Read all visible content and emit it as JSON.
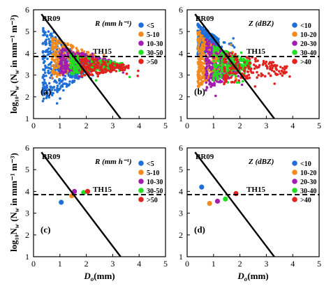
{
  "chart_data": [
    {
      "panel": "(a)",
      "type": "scatter",
      "xlim": [
        0,
        5
      ],
      "ylim": [
        1,
        6
      ],
      "xticks": [
        0,
        1,
        2,
        3,
        4,
        5
      ],
      "yticks": [
        1,
        2,
        3,
        4,
        5,
        6
      ],
      "show_x_title": false,
      "show_y_title": true,
      "legend": {
        "title": "R (mm h⁻¹)",
        "position": "top-right"
      },
      "line_labels": {
        "br09": "BR09",
        "th15": "TH15"
      },
      "series": [
        {
          "name": "<5",
          "color": "#1f6fd6",
          "cloud": {
            "x": [
              0.35,
              2.0
            ],
            "y": [
              1.7,
              5.4
            ]
          }
        },
        {
          "name": "5-10",
          "color": "#f28a1e",
          "cloud": {
            "x": [
              0.7,
              2.4
            ],
            "y": [
              2.8,
              4.8
            ]
          }
        },
        {
          "name": "10-30",
          "color": "#a21caf",
          "cloud": {
            "x": [
              1.0,
              3.0
            ],
            "y": [
              2.9,
              4.3
            ]
          }
        },
        {
          "name": "30-50",
          "color": "#22dd22",
          "cloud": {
            "x": [
              1.4,
              3.4
            ],
            "y": [
              3.0,
              4.0
            ]
          }
        },
        {
          "name": ">50",
          "color": "#e0231f",
          "cloud": {
            "x": [
              1.8,
              3.6
            ],
            "y": [
              2.9,
              3.9
            ]
          }
        }
      ]
    },
    {
      "panel": "(b)",
      "type": "scatter",
      "xlim": [
        0,
        5
      ],
      "ylim": [
        1,
        6
      ],
      "xticks": [
        0,
        1,
        2,
        3,
        4,
        5
      ],
      "yticks": [
        1,
        2,
        3,
        4,
        5,
        6
      ],
      "show_x_title": false,
      "show_y_title": false,
      "legend": {
        "title": "Z (dBZ)",
        "position": "top-right"
      },
      "line_labels": {
        "br09": "BR09",
        "th15": "TH15"
      },
      "series": [
        {
          "name": "<10",
          "color": "#1f6fd6",
          "cloud": {
            "x": [
              0.4,
              1.2
            ],
            "y": [
              3.8,
              5.4
            ]
          }
        },
        {
          "name": "10-20",
          "color": "#f28a1e",
          "cloud": {
            "x": [
              0.4,
              1.4
            ],
            "y": [
              2.3,
              5.2
            ]
          }
        },
        {
          "name": "20-30",
          "color": "#a21caf",
          "cloud": {
            "x": [
              0.7,
              2.0
            ],
            "y": [
              2.2,
              4.8
            ]
          }
        },
        {
          "name": "30-40",
          "color": "#22dd22",
          "cloud": {
            "x": [
              1.0,
              2.4
            ],
            "y": [
              2.7,
              4.4
            ]
          }
        },
        {
          "name": ">40",
          "color": "#e0231f",
          "cloud": {
            "x": [
              1.4,
              3.8
            ],
            "y": [
              2.5,
              4.2
            ]
          }
        }
      ]
    },
    {
      "panel": "(c)",
      "type": "scatter",
      "xlim": [
        0,
        5
      ],
      "ylim": [
        1,
        6
      ],
      "xticks": [
        0,
        1,
        2,
        3,
        4,
        5
      ],
      "yticks": [
        1,
        2,
        3,
        4,
        5,
        6
      ],
      "show_x_title": true,
      "show_y_title": true,
      "legend": {
        "title": "R (mm h⁻¹)",
        "position": "top-right"
      },
      "line_labels": {
        "br09": "BR09",
        "th15": "TH15"
      },
      "series": [
        {
          "name": "<5",
          "color": "#1f6fd6",
          "x": [
            1.05
          ],
          "y": [
            3.5
          ]
        },
        {
          "name": "5-10",
          "color": "#f28a1e",
          "x": [
            1.45
          ],
          "y": [
            3.8
          ]
        },
        {
          "name": "10-30",
          "color": "#a21caf",
          "x": [
            1.55
          ],
          "y": [
            4.0
          ]
        },
        {
          "name": "30-50",
          "color": "#22dd22",
          "x": [
            1.9
          ],
          "y": [
            3.95
          ]
        },
        {
          "name": ">50",
          "color": "#e0231f",
          "x": [
            2.05
          ],
          "y": [
            4.0
          ]
        }
      ]
    },
    {
      "panel": "(d)",
      "type": "scatter",
      "xlim": [
        0,
        5
      ],
      "ylim": [
        1,
        6
      ],
      "xticks": [
        0,
        1,
        2,
        3,
        4,
        5
      ],
      "yticks": [
        1,
        2,
        3,
        4,
        5,
        6
      ],
      "show_x_title": true,
      "show_y_title": false,
      "legend": {
        "title": "Z (dBZ)",
        "position": "top-right"
      },
      "line_labels": {
        "br09": "BR09",
        "th15": "TH15"
      },
      "series": [
        {
          "name": "<10",
          "color": "#1f6fd6",
          "x": [
            0.55
          ],
          "y": [
            4.2
          ]
        },
        {
          "name": "10-20",
          "color": "#f28a1e",
          "x": [
            0.85
          ],
          "y": [
            3.45
          ]
        },
        {
          "name": "20-30",
          "color": "#a21caf",
          "x": [
            1.15
          ],
          "y": [
            3.55
          ]
        },
        {
          "name": "30-40",
          "color": "#22dd22",
          "x": [
            1.45
          ],
          "y": [
            3.65
          ]
        },
        {
          "name": ">40",
          "color": "#e0231f",
          "x": [
            1.85
          ],
          "y": [
            3.9
          ]
        }
      ]
    }
  ],
  "reference_lines": {
    "br09": {
      "x": [
        0.3,
        3.3
      ],
      "y": [
        5.8,
        1.0
      ]
    },
    "th15": {
      "y": 3.85
    }
  },
  "axis_titles": {
    "x": "D",
    "x_sub": "o",
    "x_unit": "(mm)",
    "y": "log₁₀N",
    "y_sub": "w",
    "y_unit": "(N",
    "y_unit2": " in mm⁻¹ m⁻³)"
  }
}
